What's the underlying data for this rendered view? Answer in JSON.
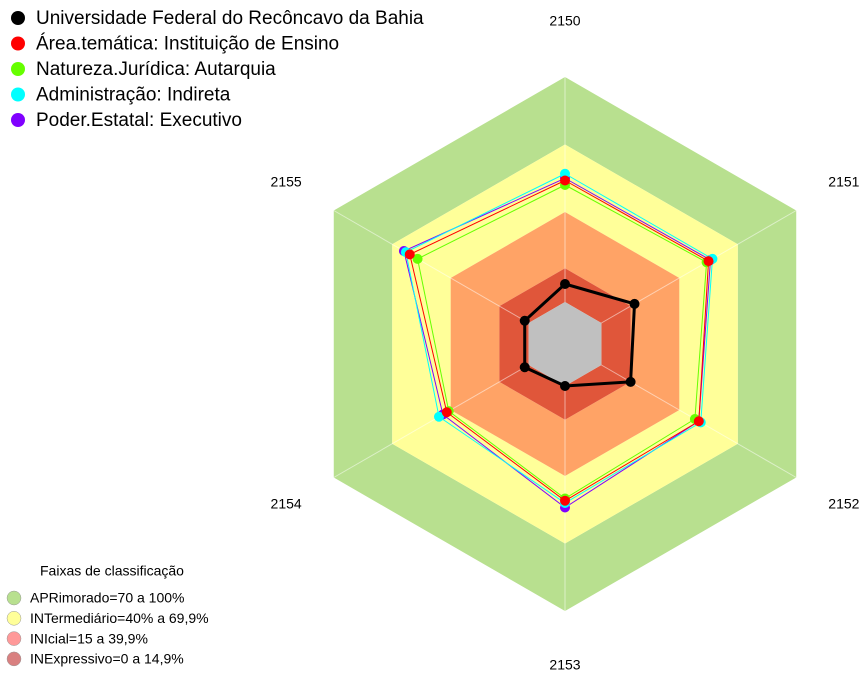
{
  "chart_data": {
    "type": "radar",
    "categories": [
      "2150",
      "2151",
      "2152",
      "2153",
      "2154",
      "2155"
    ],
    "ylim": [
      0,
      100
    ],
    "series": [
      {
        "name": "Universidade Federal do Recôncavo da Bahia",
        "color": "#000000",
        "values": [
          8,
          17,
          15,
          0,
          2,
          2
        ]
      },
      {
        "name": "Área.temática: Instituição de Ensino",
        "color": "#ff0000",
        "values": [
          54,
          55,
          50,
          51,
          42,
          61
        ]
      },
      {
        "name": "Natureza.Jurídica: Autarquia",
        "color": "#66ff00",
        "values": [
          52,
          54,
          48,
          50,
          41,
          57
        ]
      },
      {
        "name": "Administração: Indireta",
        "color": "#00ffff",
        "values": [
          57,
          57,
          51,
          52,
          46,
          63
        ]
      },
      {
        "name": "Poder.Estatal: Executivo",
        "color": "#8000ff",
        "values": [
          55,
          56,
          50,
          54,
          44,
          64
        ]
      }
    ],
    "bands_title": "Faixas de classificação",
    "bands": [
      {
        "name": "APRimorado=70 a 100%",
        "from": 70,
        "to": 100,
        "color": "#b8e08f",
        "legend_color": "#b8e08f"
      },
      {
        "name": "INTermediário=40% a 69,9%",
        "from": 40,
        "to": 70,
        "color": "#ffff99",
        "legend_color": "#ffff99"
      },
      {
        "name": "INIcial=15 a 39,9%",
        "from": 15,
        "to": 40,
        "color": "#ffa366",
        "legend_color": "#ff9999"
      },
      {
        "name": "INExpressivo=0 a 14,9%",
        "from": 0,
        "to": 15,
        "color": "#e0563a",
        "legend_color": "#d98080"
      }
    ]
  }
}
